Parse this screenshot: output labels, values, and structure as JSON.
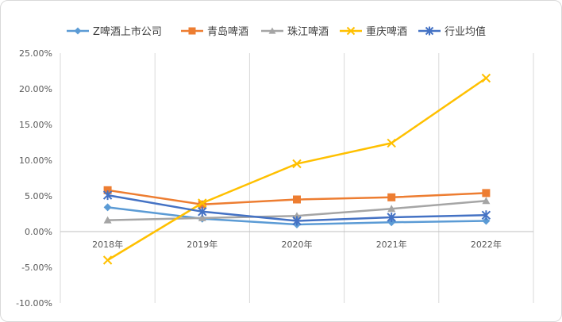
{
  "chart_data": {
    "type": "line",
    "categories": [
      "2018年",
      "2019年",
      "2020年",
      "2021年",
      "2022年"
    ],
    "ylim": [
      -0.1,
      0.25
    ],
    "y_ticks": [
      "-10.00%",
      "-5.00%",
      "0.00%",
      "5.00%",
      "10.00%",
      "15.00%",
      "20.00%",
      "25.00%"
    ],
    "grid": "vertical",
    "legend": "top",
    "series": [
      {
        "name": "Z啤酒上市公司",
        "color": "#5b9bd5",
        "marker": "diamond",
        "values": [
          0.034,
          0.018,
          0.01,
          0.013,
          0.015
        ]
      },
      {
        "name": "青岛啤酒",
        "color": "#ed7d31",
        "marker": "square",
        "values": [
          0.058,
          0.038,
          0.045,
          0.048,
          0.054
        ]
      },
      {
        "name": "珠江啤酒",
        "color": "#a5a5a5",
        "marker": "triangle",
        "values": [
          0.016,
          0.019,
          0.022,
          0.032,
          0.043
        ]
      },
      {
        "name": "重庆啤酒",
        "color": "#ffc000",
        "marker": "x",
        "values": [
          -0.04,
          0.04,
          0.095,
          0.124,
          0.215
        ]
      },
      {
        "name": "行业均值",
        "color": "#4472c4",
        "marker": "star",
        "values": [
          0.051,
          0.028,
          0.015,
          0.02,
          0.023
        ]
      }
    ]
  }
}
